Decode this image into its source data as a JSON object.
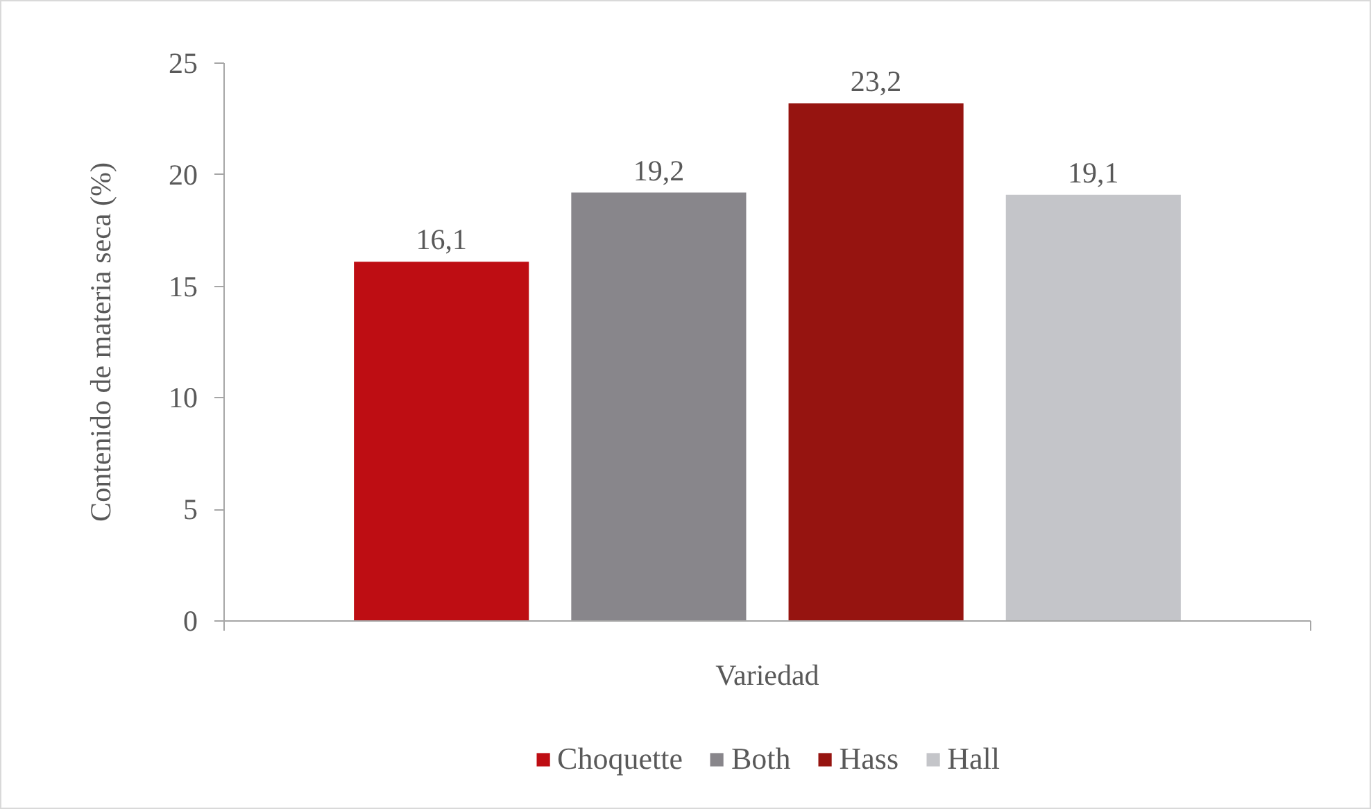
{
  "chart_data": {
    "type": "bar",
    "xlabel": "Variedad",
    "ylabel": "Contenido de materia seca (%)",
    "categories": [
      null
    ],
    "series": [
      {
        "name": "Choquette",
        "color": "#be0d13",
        "values": [
          16.1
        ],
        "value_labels": [
          "16,1"
        ]
      },
      {
        "name": "Both",
        "color": "#88868b",
        "values": [
          19.2
        ],
        "value_labels": [
          "19,2"
        ]
      },
      {
        "name": "Hass",
        "color": "#961410",
        "values": [
          23.2
        ],
        "value_labels": [
          "23,2"
        ]
      },
      {
        "name": "Hall",
        "color": "#c4c5c9",
        "values": [
          19.1
        ],
        "value_labels": [
          "19,1"
        ]
      }
    ],
    "ylim": [
      0,
      25
    ],
    "yticks": [
      0,
      5,
      10,
      15,
      20,
      25
    ],
    "legend": "bottom"
  }
}
